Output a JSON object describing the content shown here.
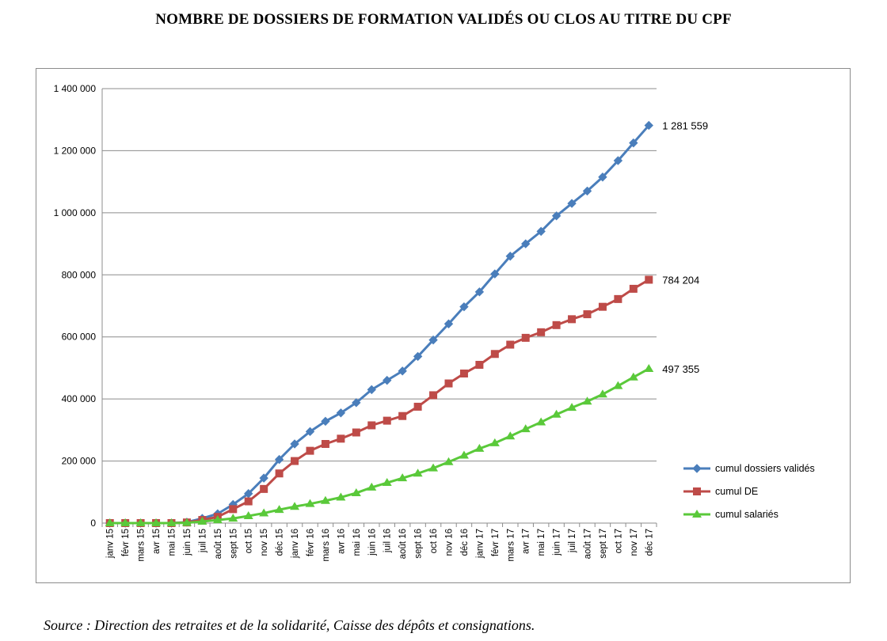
{
  "page": {
    "title": "NOMBRE DE DOSSIERS DE FORMATION VALIDÉS OU CLOS AU TITRE DU CPF",
    "source": "Source : Direction des retraites et de la solidarité, Caisse des dépôts et consignations."
  },
  "chart_data": {
    "type": "line",
    "title": "NOMBRE DE DOSSIERS DE FORMATION VALIDÉS OU CLOS AU TITRE DU CPF",
    "xlabel": "",
    "ylabel": "",
    "ylim": [
      0,
      1400000
    ],
    "yticks": [
      0,
      200000,
      400000,
      600000,
      800000,
      1000000,
      1200000,
      1400000
    ],
    "ytick_labels": [
      "0",
      "200 000",
      "400 000",
      "600 000",
      "800 000",
      "1 000 000",
      "1 200 000",
      "1 400 000"
    ],
    "grid": true,
    "legend": "right",
    "categories": [
      "janv 15",
      "févr 15",
      "mars 15",
      "avr 15",
      "mai 15",
      "juin 15",
      "juil 15",
      "août 15",
      "sept 15",
      "oct 15",
      "nov 15",
      "déc 15",
      "janv 16",
      "févr 16",
      "mars 16",
      "avr 16",
      "mai 16",
      "juin 16",
      "juil 16",
      "août 16",
      "sept 16",
      "oct 16",
      "nov 16",
      "déc 16",
      "janv 17",
      "févr 17",
      "mars 17",
      "avr 17",
      "mai 17",
      "juin 17",
      "juil 17",
      "août 17",
      "sept 17",
      "oct 17",
      "nov 17",
      "déc 17"
    ],
    "series": [
      {
        "name": "cumul dossiers validés",
        "color": "#4a7ebb",
        "marker": "diamond",
        "end_label": "1 281 559",
        "values": [
          0,
          0,
          0,
          0,
          0,
          3000,
          15000,
          30000,
          60000,
          95000,
          145000,
          205000,
          255000,
          295000,
          328000,
          355000,
          388000,
          430000,
          460000,
          490000,
          537000,
          590000,
          642000,
          697000,
          745000,
          803000,
          860000,
          900000,
          940000,
          990000,
          1030000,
          1070000,
          1115000,
          1168000,
          1225000,
          1281559
        ]
      },
      {
        "name": "cumul DE",
        "color": "#be4b48",
        "marker": "square",
        "end_label": "784 204",
        "values": [
          0,
          0,
          0,
          0,
          0,
          2000,
          10000,
          20000,
          45000,
          70000,
          110000,
          160000,
          200000,
          233000,
          255000,
          272000,
          292000,
          315000,
          330000,
          345000,
          375000,
          412000,
          450000,
          482000,
          510000,
          545000,
          575000,
          597000,
          615000,
          638000,
          657000,
          673000,
          697000,
          722000,
          755000,
          784204
        ]
      },
      {
        "name": "cumul salariés",
        "color": "#5ac93a",
        "marker": "triangle",
        "end_label": "497 355",
        "values": [
          0,
          0,
          0,
          0,
          0,
          1000,
          5000,
          10000,
          15000,
          23000,
          32000,
          43000,
          53000,
          62000,
          72000,
          83000,
          97000,
          115000,
          130000,
          145000,
          160000,
          177000,
          197000,
          218000,
          240000,
          258000,
          280000,
          303000,
          325000,
          350000,
          372000,
          392000,
          415000,
          442000,
          470000,
          497355
        ]
      }
    ]
  }
}
